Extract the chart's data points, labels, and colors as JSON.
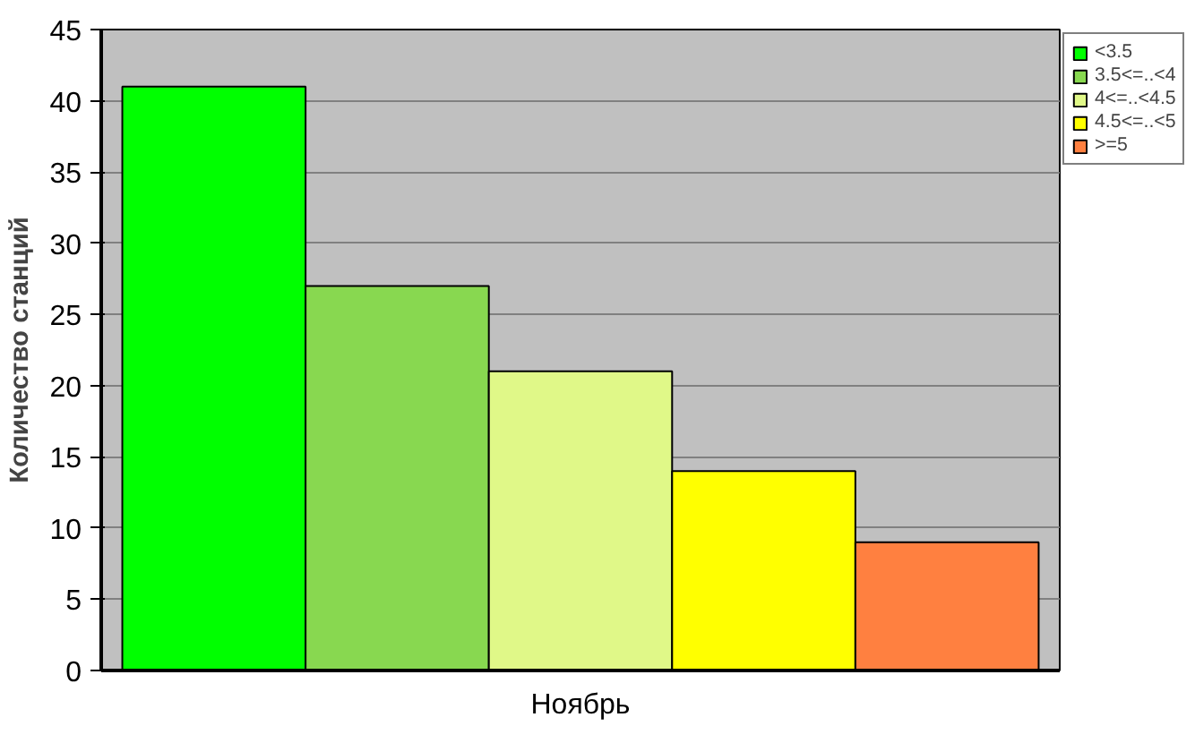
{
  "chart_data": {
    "type": "bar",
    "ylabel": "Количество станций",
    "categories": [
      "Ноябрь"
    ],
    "series": [
      {
        "name": "<3.5",
        "color": "#00ff00",
        "values": [
          41
        ]
      },
      {
        "name": "3.5<=..<4",
        "color": "#88d850",
        "values": [
          27
        ]
      },
      {
        "name": "4<=..<4.5",
        "color": "#e0f888",
        "values": [
          21
        ]
      },
      {
        "name": "4.5<=..<5",
        "color": "#ffff00",
        "values": [
          14
        ]
      },
      {
        "name": ">=5",
        "color": "#ff8040",
        "values": [
          9
        ]
      }
    ],
    "ylim": [
      0,
      45
    ],
    "yticks": [
      0,
      5,
      10,
      15,
      20,
      25,
      30,
      35,
      40,
      45
    ],
    "grid": "y",
    "legend": "top right"
  }
}
